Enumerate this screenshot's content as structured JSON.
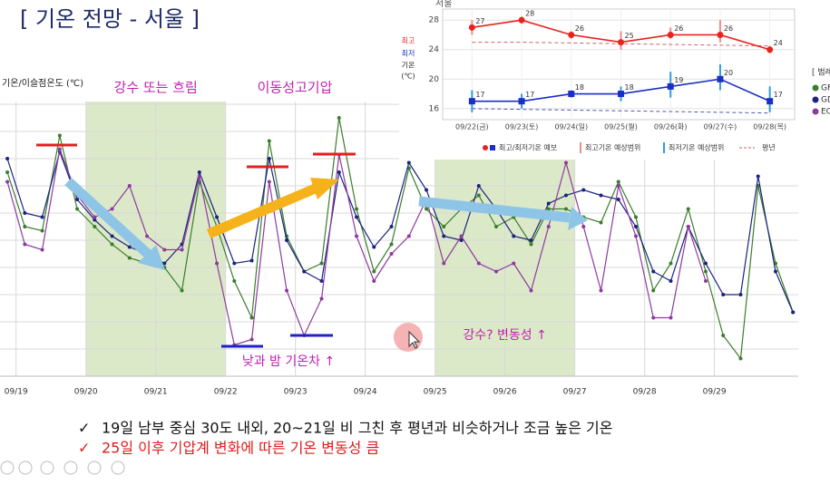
{
  "title": "[ 기온 전망 - 서울 ]",
  "bullets": [
    {
      "mark": "✓",
      "text": "19일 남부 중심 30도 내외, 20~21일 비 그친 후 평년과 비슷하거나 조금 높은 기온"
    },
    {
      "mark": "✓",
      "text": "25일 이후 기압계 변화에 따른 기온 변동성 큼"
    }
  ],
  "chart_data": [
    {
      "type": "line",
      "y_label": "기온/이슬점온도 (℃)",
      "legend_title": "[ 범례",
      "x": [
        18.875,
        19.125,
        19.375,
        19.625,
        19.875,
        20.125,
        20.375,
        20.625,
        20.875,
        21.125,
        21.375,
        21.625,
        21.875,
        22.125,
        22.375,
        22.625,
        22.875,
        23.125,
        23.375,
        23.625,
        23.875,
        24.125,
        24.375,
        24.625,
        24.875,
        25.125,
        25.375,
        25.625,
        25.875,
        26.125,
        26.375,
        26.625,
        26.875,
        27.125,
        27.375,
        27.625,
        27.875,
        28.125,
        28.375,
        28.625,
        28.875,
        29.125,
        29.375,
        29.625,
        29.875,
        30.125
      ],
      "xlim": [
        18.77,
        30.2
      ],
      "xticks": [
        {
          "value": 19,
          "label": "09/19"
        },
        {
          "value": 20,
          "label": "09/20"
        },
        {
          "value": 21,
          "label": "09/21"
        },
        {
          "value": 22,
          "label": "09/22"
        },
        {
          "value": 23,
          "label": "09/23"
        },
        {
          "value": 24,
          "label": "09/24"
        },
        {
          "value": 25,
          "label": "09/25"
        },
        {
          "value": 26,
          "label": "09/26"
        },
        {
          "value": 27,
          "label": "09/27"
        },
        {
          "value": 28,
          "label": "09/28"
        },
        {
          "value": 29,
          "label": "09/29"
        }
      ],
      "ylim": [
        10,
        31
      ],
      "yticks": [
        12,
        14,
        16,
        18,
        20,
        22,
        24,
        26,
        28,
        30
      ],
      "grid": true,
      "series": [
        {
          "name": "GF",
          "color": "#3a7d2c",
          "values": [
            25.0,
            21.0,
            20.7,
            27.7,
            22.3,
            21.0,
            19.7,
            18.7,
            18.3,
            18.0,
            16.3,
            24.3,
            21.0,
            17.0,
            14.3,
            27.3,
            20.3,
            17.7,
            18.3,
            29.0,
            22.3,
            17.7,
            19.7,
            25.3,
            22.3,
            21.0,
            22.3,
            23.3,
            21.0,
            21.7,
            19.7,
            22.3,
            22.3,
            21.7,
            21.3,
            24.3,
            21.7,
            16.3,
            18.3,
            22.3,
            17.7,
            13.0,
            11.3,
            24.0,
            18.3,
            14.7
          ]
        },
        {
          "name": "GD",
          "color": "#1a237e",
          "values": [
            26.0,
            22.0,
            21.7,
            26.5,
            23.0,
            21.5,
            20.3,
            19.5,
            19.0,
            18.3,
            19.7,
            25.0,
            21.7,
            18.3,
            18.5,
            26.0,
            20.0,
            17.7,
            17.0,
            25.0,
            21.7,
            19.5,
            21.0,
            25.7,
            23.7,
            20.3,
            20.0,
            24.0,
            22.3,
            20.3,
            20.0,
            22.7,
            23.3,
            23.7,
            23.3,
            23.0,
            21.0,
            17.7,
            17.0,
            21.0,
            18.3,
            16.0,
            16.0,
            24.7,
            17.7,
            14.7
          ]
        },
        {
          "name": "EC",
          "color": "#8e3a9e",
          "values": [
            24.3,
            19.7,
            19.3,
            26.7,
            23.3,
            21.7,
            22.3,
            24.0,
            20.3,
            19.3,
            19.3,
            24.7,
            18.3,
            12.3,
            12.7,
            24.3,
            16.3,
            13.0,
            15.7,
            26.3,
            20.3,
            17.0,
            19.0,
            20.3,
            23.0,
            18.3,
            20.3,
            18.3,
            17.7,
            18.3,
            16.3,
            21.0,
            25.7,
            21.0,
            16.3,
            24.0,
            20.3,
            14.3,
            14.3,
            21.0,
            17.0,
            null,
            null,
            null,
            null,
            null
          ]
        }
      ],
      "shaded_regions": [
        {
          "label": "강수 또는 흐림",
          "x": [
            20,
            22
          ],
          "color": "#dce9c9"
        },
        {
          "label": "강수? 변동성 ↑",
          "x": [
            25,
            27
          ],
          "color": "#dce9c9"
        }
      ],
      "annotations": [
        "이동성고기압",
        "낮과 밤 기온차 ↑"
      ]
    },
    {
      "type": "line",
      "title": "서울",
      "y_label": "기온",
      "y_unit": "(℃)",
      "categories": [
        "09/22(금)",
        "09/23(토)",
        "09/24(일)",
        "09/25(월)",
        "09/26(화)",
        "09/27(수)",
        "09/28(목)"
      ],
      "ylim": [
        14.5,
        29.5
      ],
      "yticks": [
        16,
        20,
        24,
        28
      ],
      "grid": true,
      "forecast_label": "최고/최저기온 예보",
      "series": [
        {
          "name": "최고",
          "color": "#e8231d",
          "values": [
            27,
            28,
            26,
            25,
            26,
            26,
            24
          ]
        },
        {
          "name": "최저",
          "color": "#1b2fc4",
          "values": [
            17,
            17,
            18,
            18,
            19,
            20,
            17
          ]
        }
      ],
      "ranges": [
        {
          "name": "최고기온 예상범위",
          "color": "#f08a8a",
          "values": [
            [
              26,
              28
            ],
            [
              27.5,
              28.5
            ],
            [
              25.5,
              26.5
            ],
            [
              24,
              26.5
            ],
            [
              25.5,
              27
            ],
            [
              25,
              28
            ],
            [
              23.5,
              24.5
            ]
          ]
        },
        {
          "name": "최저기온 예상범위",
          "color": "#2f9be0",
          "values": [
            [
              15.5,
              18.5
            ],
            [
              16,
              18
            ],
            [
              17.5,
              18.5
            ],
            [
              17,
              19
            ],
            [
              17.5,
              21
            ],
            [
              18.5,
              22
            ],
            [
              15.5,
              19
            ]
          ]
        }
      ],
      "normals": {
        "name": "평년",
        "high": [
          25,
          25,
          24.9,
          24.8,
          24.7,
          24.6,
          24.5
        ],
        "low": [
          16,
          15.9,
          15.8,
          15.7,
          15.6,
          15.5,
          15.4
        ],
        "high_color": "#d06060",
        "low_color": "#4a5bb0"
      }
    }
  ]
}
